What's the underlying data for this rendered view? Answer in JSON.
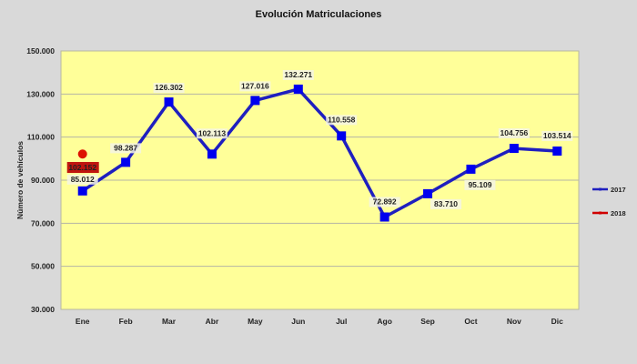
{
  "chart_data": {
    "type": "line",
    "title": "Evolución Matriculaciones",
    "xlabel": "",
    "ylabel": "Número de vehículos",
    "categories": [
      "Ene",
      "Feb",
      "Mar",
      "Abr",
      "May",
      "Jun",
      "Jul",
      "Ago",
      "Sep",
      "Oct",
      "Nov",
      "Dic"
    ],
    "series": [
      {
        "name": "2017",
        "color": "#1f1fbf",
        "values": [
          85012,
          98287,
          126302,
          102113,
          127016,
          132271,
          110558,
          72892,
          83710,
          95109,
          104756,
          103514
        ],
        "labels": [
          "85.012",
          "98.287",
          "126.302",
          "102.113",
          "127.016",
          "132.271",
          "110.558",
          "72.892",
          "83.710",
          "95.109",
          "104.756",
          "103.514"
        ]
      },
      {
        "name": "2018",
        "color": "#d00000",
        "values": [
          102152,
          null,
          null,
          null,
          null,
          null,
          null,
          null,
          null,
          null,
          null,
          null
        ],
        "labels": [
          "102.152"
        ]
      }
    ],
    "ylim": [
      30000,
      150000
    ],
    "yticks": [
      "150.000",
      "130.000",
      "110.000",
      "90.000",
      "70.000",
      "50.000",
      "30.000"
    ],
    "grid": true,
    "legend_position": "right",
    "plot_background": "#ffff99"
  }
}
